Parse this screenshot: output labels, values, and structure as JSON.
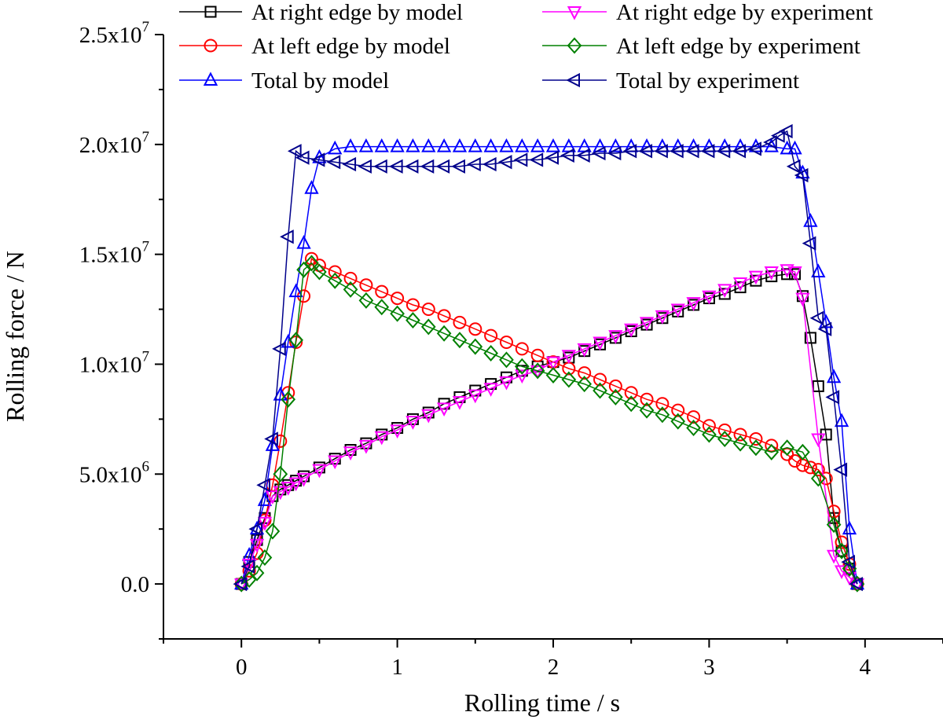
{
  "chart_data": {
    "type": "line",
    "xlabel": "Rolling time / s",
    "ylabel": "Rolling force / N",
    "xlim": [
      -0.5,
      4.5
    ],
    "ylim": [
      -2500000,
      25000000
    ],
    "xticks": [
      {
        "value": 0,
        "label": "0"
      },
      {
        "value": 1,
        "label": "1"
      },
      {
        "value": 2,
        "label": "2"
      },
      {
        "value": 3,
        "label": "3"
      },
      {
        "value": 4,
        "label": "4"
      }
    ],
    "yticks": [
      {
        "value": 0,
        "mant": "0.0",
        "exp": ""
      },
      {
        "value": 5000000,
        "mant": "5.0x10",
        "exp": "6"
      },
      {
        "value": 10000000,
        "mant": "1.0x10",
        "exp": "7"
      },
      {
        "value": 15000000,
        "mant": "1.5x10",
        "exp": "7"
      },
      {
        "value": 20000000,
        "mant": "2.0x10",
        "exp": "7"
      },
      {
        "value": 25000000,
        "mant": "2.5x10",
        "exp": "7"
      }
    ],
    "grid": false,
    "legend_position": "top",
    "series": [
      {
        "name": "At right edge by model",
        "color": "#000000",
        "marker": "square",
        "x": [
          0,
          0.05,
          0.1,
          0.15,
          0.2,
          0.25,
          0.3,
          0.35,
          0.4,
          0.5,
          0.6,
          0.7,
          0.8,
          0.9,
          1.0,
          1.1,
          1.2,
          1.3,
          1.4,
          1.5,
          1.6,
          1.7,
          1.8,
          1.9,
          2.0,
          2.1,
          2.2,
          2.3,
          2.4,
          2.5,
          2.6,
          2.7,
          2.8,
          2.9,
          3.0,
          3.1,
          3.2,
          3.3,
          3.4,
          3.5,
          3.55,
          3.6,
          3.65,
          3.7,
          3.75,
          3.8,
          3.85,
          3.9,
          3.95
        ],
        "y": [
          0,
          1000000,
          2000000,
          3000000,
          4000000,
          4300000,
          4500000,
          4700000,
          4900000,
          5300000,
          5700000,
          6100000,
          6400000,
          6800000,
          7100000,
          7500000,
          7800000,
          8200000,
          8500000,
          8800000,
          9100000,
          9400000,
          9700000,
          9900000,
          10100000,
          10300000,
          10600000,
          10900000,
          11200000,
          11500000,
          11800000,
          12100000,
          12400000,
          12700000,
          13000000,
          13200000,
          13500000,
          13800000,
          14000000,
          14100000,
          14100000,
          13100000,
          11200000,
          9000000,
          6800000,
          3000000,
          1500000,
          700000,
          0
        ]
      },
      {
        "name": "At left edge by model",
        "color": "#ff0000",
        "marker": "circle",
        "x": [
          0,
          0.05,
          0.1,
          0.15,
          0.2,
          0.25,
          0.3,
          0.35,
          0.4,
          0.45,
          0.5,
          0.6,
          0.7,
          0.8,
          0.9,
          1.0,
          1.1,
          1.2,
          1.3,
          1.4,
          1.5,
          1.6,
          1.7,
          1.8,
          1.9,
          2.0,
          2.1,
          2.2,
          2.3,
          2.4,
          2.5,
          2.6,
          2.7,
          2.8,
          2.9,
          3.0,
          3.1,
          3.2,
          3.3,
          3.4,
          3.5,
          3.55,
          3.6,
          3.65,
          3.7,
          3.75,
          3.8,
          3.85,
          3.9,
          3.95
        ],
        "y": [
          0,
          600000,
          1400000,
          2900000,
          4500000,
          6500000,
          8700000,
          11000000,
          13100000,
          14800000,
          14500000,
          14200000,
          13900000,
          13600000,
          13300000,
          13000000,
          12700000,
          12500000,
          12200000,
          11900000,
          11600000,
          11300000,
          11000000,
          10700000,
          10400000,
          10100000,
          9800000,
          9600000,
          9300000,
          9000000,
          8700000,
          8400000,
          8200000,
          7900000,
          7600000,
          7200000,
          7000000,
          6800000,
          6600000,
          6300000,
          5900000,
          5600000,
          5400000,
          5300000,
          5200000,
          4800000,
          3300000,
          1900000,
          900000,
          0
        ]
      },
      {
        "name": "Total by model",
        "color": "#0000ff",
        "marker": "triangle-up",
        "x": [
          0,
          0.05,
          0.1,
          0.15,
          0.2,
          0.25,
          0.3,
          0.35,
          0.4,
          0.45,
          0.5,
          0.6,
          0.7,
          0.8,
          0.9,
          1.0,
          1.1,
          1.2,
          1.3,
          1.4,
          1.5,
          1.6,
          1.7,
          1.8,
          1.9,
          2.0,
          2.1,
          2.2,
          2.3,
          2.4,
          2.5,
          2.6,
          2.7,
          2.8,
          2.9,
          3.0,
          3.1,
          3.2,
          3.3,
          3.4,
          3.5,
          3.55,
          3.6,
          3.65,
          3.7,
          3.75,
          3.8,
          3.85,
          3.9,
          3.95
        ],
        "y": [
          0,
          1300000,
          2500000,
          3800000,
          6300000,
          8600000,
          11000000,
          13300000,
          15500000,
          18000000,
          19400000,
          19800000,
          19900000,
          19900000,
          19900000,
          19900000,
          19900000,
          19900000,
          19900000,
          19900000,
          19900000,
          19900000,
          19900000,
          19900000,
          19900000,
          19900000,
          19900000,
          19900000,
          19900000,
          19900000,
          19900000,
          19900000,
          19900000,
          19900000,
          19900000,
          19900000,
          19900000,
          19900000,
          19900000,
          19900000,
          19800000,
          19800000,
          18700000,
          16500000,
          14200000,
          11900000,
          9400000,
          7400000,
          2500000,
          0
        ]
      },
      {
        "name": "At right edge by experiment",
        "color": "#ff00ff",
        "marker": "triangle-down",
        "x": [
          0,
          0.05,
          0.1,
          0.15,
          0.2,
          0.25,
          0.3,
          0.35,
          0.4,
          0.5,
          0.6,
          0.7,
          0.8,
          0.9,
          1.0,
          1.1,
          1.2,
          1.3,
          1.4,
          1.5,
          1.6,
          1.7,
          1.8,
          1.9,
          2.0,
          2.1,
          2.2,
          2.3,
          2.4,
          2.5,
          2.6,
          2.7,
          2.8,
          2.9,
          3.0,
          3.1,
          3.2,
          3.3,
          3.4,
          3.5,
          3.55,
          3.6,
          3.7,
          3.8,
          3.85,
          3.9,
          3.95
        ],
        "y": [
          0,
          900000,
          1800000,
          2800000,
          4000000,
          4200000,
          4400000,
          4600000,
          4800000,
          5200000,
          5600000,
          6000000,
          6300000,
          6700000,
          7000000,
          7400000,
          7700000,
          8000000,
          8300000,
          8600000,
          8900000,
          9200000,
          9500000,
          9700000,
          10100000,
          10400000,
          10700000,
          11000000,
          11300000,
          11600000,
          11900000,
          12200000,
          12500000,
          12800000,
          13100000,
          13400000,
          13700000,
          14000000,
          14200000,
          14300000,
          14200000,
          13000000,
          6600000,
          1300000,
          600000,
          300000,
          0
        ]
      },
      {
        "name": "At left edge by experiment",
        "color": "#008000",
        "marker": "diamond",
        "x": [
          0,
          0.05,
          0.1,
          0.15,
          0.2,
          0.25,
          0.3,
          0.35,
          0.4,
          0.45,
          0.5,
          0.6,
          0.7,
          0.8,
          0.9,
          1.0,
          1.1,
          1.2,
          1.3,
          1.4,
          1.5,
          1.6,
          1.7,
          1.8,
          1.9,
          2.0,
          2.1,
          2.2,
          2.3,
          2.4,
          2.5,
          2.6,
          2.7,
          2.8,
          2.9,
          3.0,
          3.1,
          3.2,
          3.3,
          3.4,
          3.5,
          3.6,
          3.7,
          3.8,
          3.85,
          3.9,
          3.95
        ],
        "y": [
          0,
          200000,
          500000,
          1200000,
          2400000,
          5000000,
          8400000,
          11100000,
          14300000,
          14600000,
          14200000,
          13800000,
          13400000,
          12900000,
          12600000,
          12300000,
          12000000,
          11700000,
          11400000,
          11100000,
          10800000,
          10500000,
          10200000,
          9900000,
          9700000,
          9500000,
          9300000,
          9100000,
          8800000,
          8500000,
          8200000,
          7900000,
          7700000,
          7400000,
          7100000,
          6800000,
          6600000,
          6400000,
          6200000,
          6000000,
          6200000,
          6000000,
          4800000,
          2700000,
          1500000,
          700000,
          0
        ]
      },
      {
        "name": "Total by experiment",
        "color": "#00008b",
        "marker": "triangle-left",
        "x": [
          0,
          0.05,
          0.1,
          0.15,
          0.2,
          0.25,
          0.3,
          0.35,
          0.4,
          0.5,
          0.6,
          0.7,
          0.8,
          0.9,
          1.0,
          1.1,
          1.2,
          1.3,
          1.4,
          1.5,
          1.6,
          1.7,
          1.8,
          1.9,
          2.0,
          2.1,
          2.2,
          2.3,
          2.4,
          2.5,
          2.6,
          2.7,
          2.8,
          2.9,
          3.0,
          3.1,
          3.2,
          3.3,
          3.4,
          3.45,
          3.5,
          3.55,
          3.6,
          3.65,
          3.7,
          3.75,
          3.8,
          3.85,
          3.9,
          3.95
        ],
        "y": [
          0,
          800000,
          2500000,
          4500000,
          6600000,
          10700000,
          15800000,
          19700000,
          19400000,
          19300000,
          19200000,
          19100000,
          19000000,
          19000000,
          19000000,
          19000000,
          19000000,
          19000000,
          19000000,
          19100000,
          19100000,
          19200000,
          19300000,
          19300000,
          19400000,
          19500000,
          19500000,
          19600000,
          19600000,
          19700000,
          19700000,
          19700000,
          19700000,
          19700000,
          19700000,
          19700000,
          19700000,
          19800000,
          20100000,
          20400000,
          20600000,
          19000000,
          18600000,
          15500000,
          12100000,
          11600000,
          8500000,
          5200000,
          1000000,
          0
        ]
      }
    ]
  }
}
